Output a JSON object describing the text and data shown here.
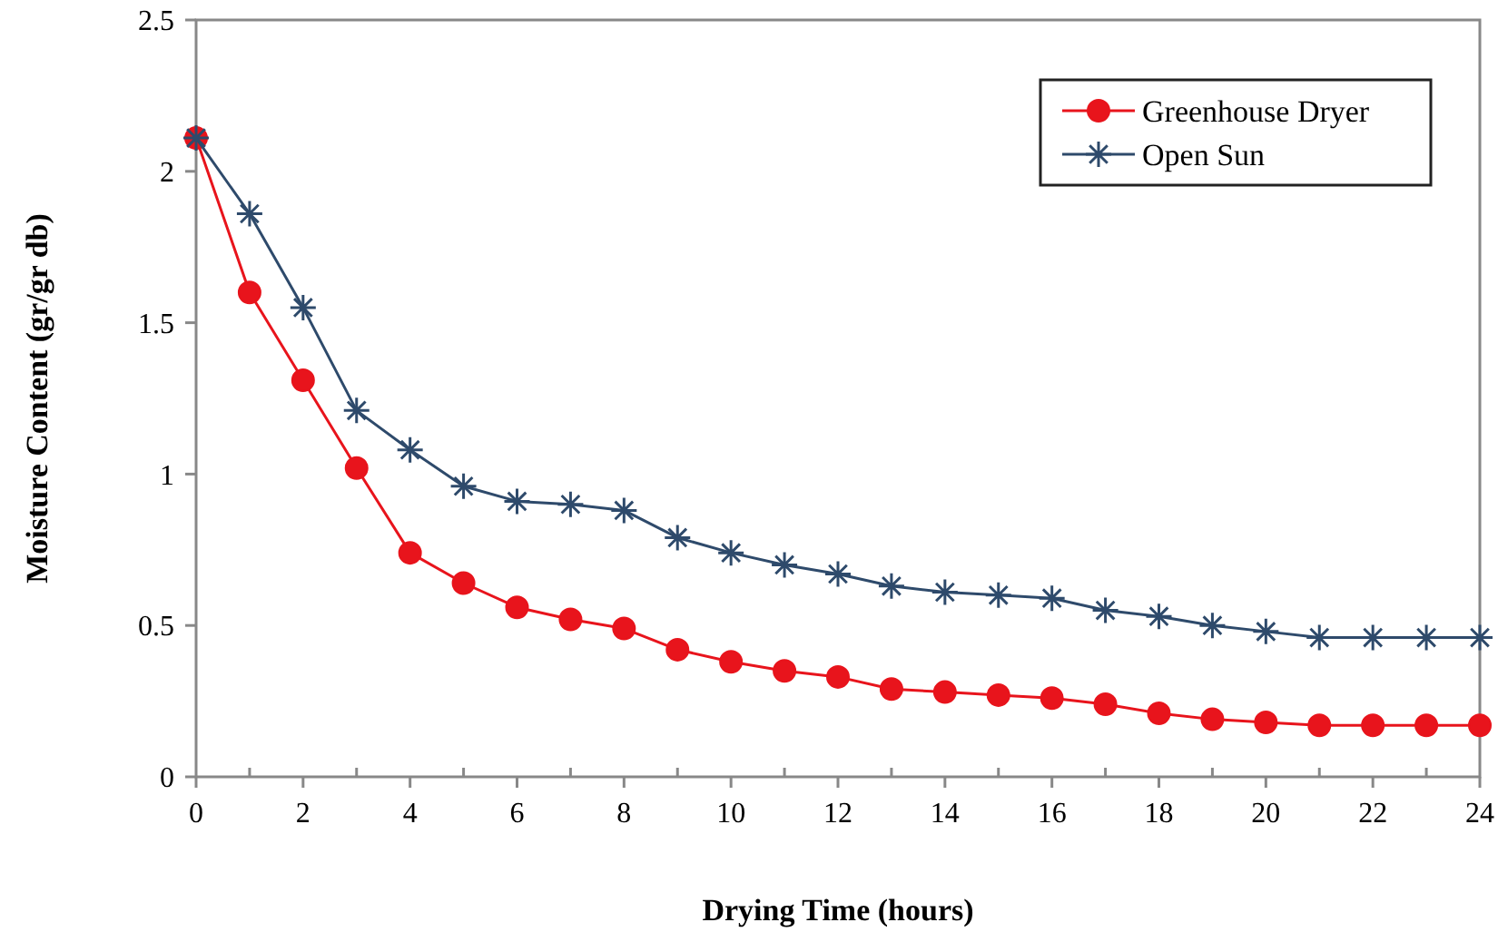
{
  "chart_data": {
    "type": "line",
    "xlabel": "Drying Time (hours)",
    "ylabel": "Moisture Content  (gr/gr db)",
    "x": [
      0,
      1,
      2,
      3,
      4,
      5,
      6,
      7,
      8,
      9,
      10,
      11,
      12,
      13,
      14,
      15,
      16,
      17,
      18,
      19,
      20,
      21,
      22,
      23,
      24
    ],
    "xlim": [
      0,
      24
    ],
    "xticks": [
      0,
      2,
      4,
      6,
      8,
      10,
      12,
      14,
      16,
      18,
      20,
      22,
      24
    ],
    "ylim": [
      0,
      2.5
    ],
    "yticks": [
      0,
      0.5,
      1,
      1.5,
      2,
      2.5
    ],
    "grid": false,
    "legend": "top right",
    "line_style": "solid",
    "series": [
      {
        "name": "Greenhouse Dryer",
        "color": "#e8141c",
        "marker": "circle",
        "values": [
          2.11,
          1.6,
          1.31,
          1.02,
          0.74,
          0.64,
          0.56,
          0.52,
          0.49,
          0.42,
          0.38,
          0.35,
          0.33,
          0.29,
          0.28,
          0.27,
          0.26,
          0.24,
          0.21,
          0.19,
          0.18,
          0.17,
          0.17,
          0.17,
          0.17
        ]
      },
      {
        "name": "Open Sun",
        "color": "#2e4a6b",
        "marker": "cross",
        "values": [
          2.11,
          1.86,
          1.55,
          1.21,
          1.08,
          0.96,
          0.91,
          0.9,
          0.88,
          0.79,
          0.74,
          0.7,
          0.67,
          0.63,
          0.61,
          0.6,
          0.59,
          0.55,
          0.53,
          0.5,
          0.48,
          0.46,
          0.46,
          0.46,
          0.46
        ]
      }
    ]
  }
}
